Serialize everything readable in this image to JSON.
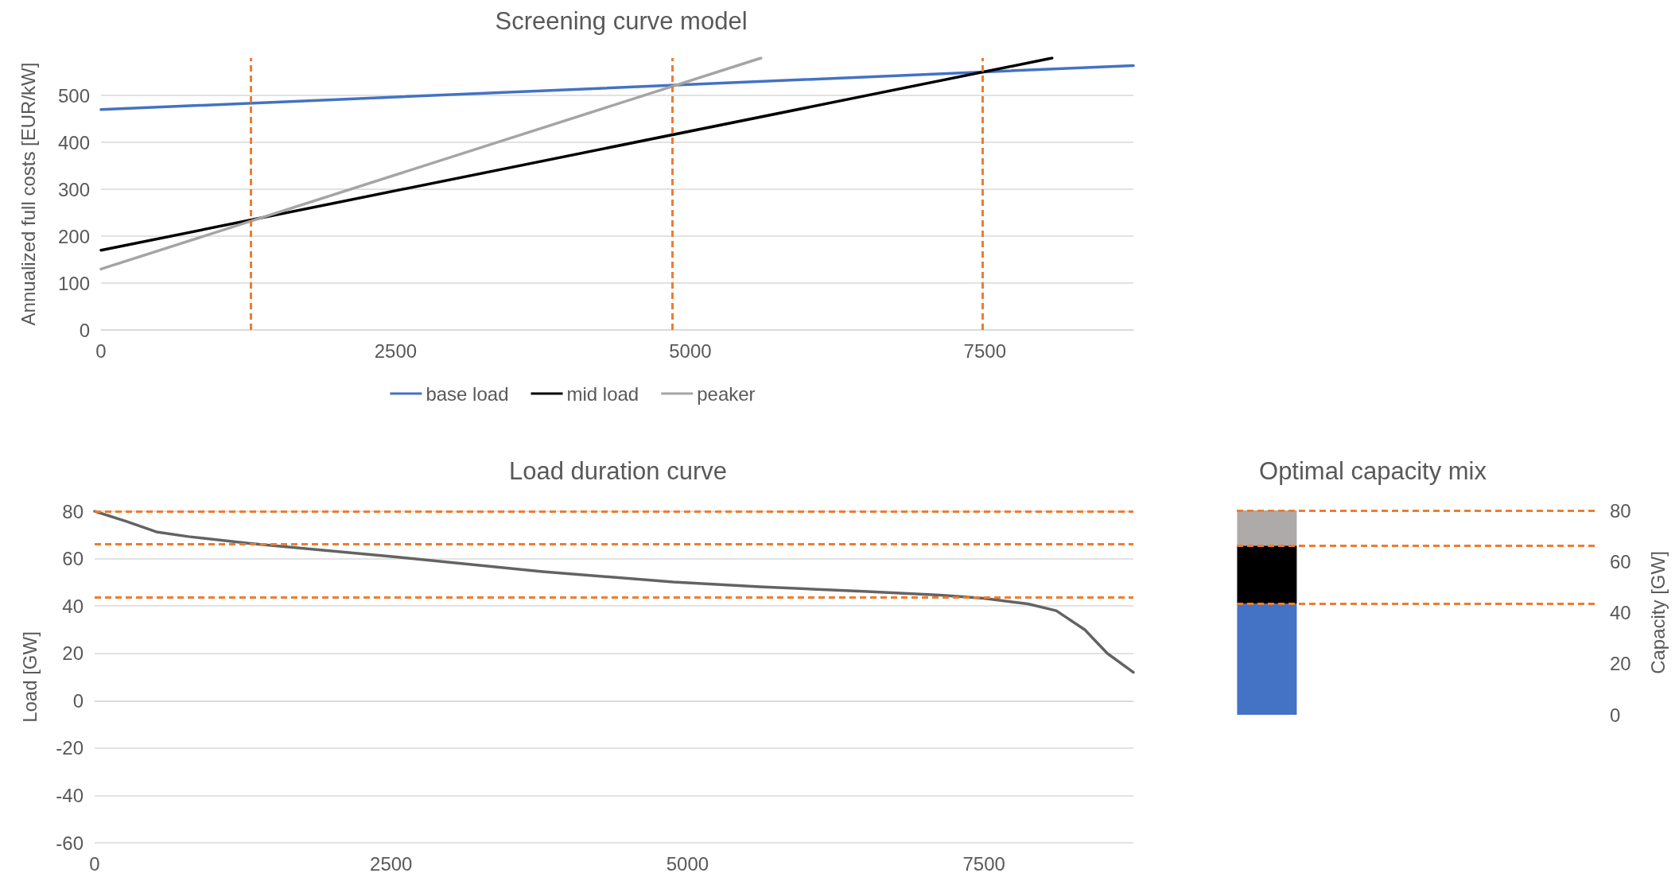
{
  "chart_data": [
    {
      "type": "line",
      "title": "Screening curve model",
      "ylabel": "Annualized full costs [EUR/kW]",
      "xlim": [
        0,
        8760
      ],
      "xticks": [
        0,
        2500,
        5000,
        7500
      ],
      "ylim": [
        0,
        580
      ],
      "yticks": [
        0,
        100,
        200,
        300,
        400,
        500
      ],
      "grid": "y",
      "legend": "bottom",
      "marker": "none",
      "series": [
        {
          "name": "base load",
          "color": "#4472c4",
          "x": [
            0,
            8760
          ],
          "values": [
            470,
            564
          ]
        },
        {
          "name": "mid load",
          "color": "#000000",
          "x": [
            0,
            8070
          ],
          "values": [
            170,
            580
          ]
        },
        {
          "name": "peaker",
          "color": "#a5a5a5",
          "x": [
            0,
            5600
          ],
          "values": [
            130,
            580
          ]
        }
      ],
      "ref_lines": [
        {
          "axis": "x",
          "value": 1270,
          "color": "#ed7d31",
          "line_style": "dashed"
        },
        {
          "axis": "x",
          "value": 4850,
          "color": "#ed7d31",
          "line_style": "dashed"
        },
        {
          "axis": "x",
          "value": 7480,
          "color": "#ed7d31",
          "line_style": "dashed"
        }
      ]
    },
    {
      "type": "line",
      "title": "Load duration curve",
      "ylabel": "Load [GW]",
      "xlim": [
        0,
        8760
      ],
      "xticks": [
        0,
        2500,
        5000,
        7500
      ],
      "ylim": [
        -60,
        80
      ],
      "yticks": [
        -60,
        -40,
        -20,
        0,
        20,
        40,
        60,
        80
      ],
      "grid": "y",
      "marker": "none",
      "series": [
        {
          "color": "#636363",
          "x": [
            0,
            270,
            520,
            790,
            1310,
            2560,
            3780,
            4880,
            5610,
            6520,
            7130,
            7500,
            7870,
            8110,
            8350,
            8540,
            8760
          ],
          "values": [
            80,
            75.7,
            71.3,
            69.3,
            66.4,
            60.6,
            54.5,
            50.1,
            48.1,
            46.1,
            44.6,
            43.2,
            40.9,
            38,
            30,
            20,
            12
          ]
        }
      ],
      "ref_lines": [
        {
          "axis": "y",
          "value": 80,
          "color": "#ed7d31",
          "line_style": "dashed"
        },
        {
          "axis": "y",
          "value": 66.2,
          "color": "#ed7d31",
          "line_style": "dashed"
        },
        {
          "axis": "y",
          "value": 43.5,
          "color": "#ed7d31",
          "line_style": "dashed"
        }
      ]
    },
    {
      "type": "bar",
      "title": "Optimal capacity mix",
      "ylabel": "Capacity [GW]",
      "categories": [
        null
      ],
      "stacked": true,
      "ylim": [
        0,
        80
      ],
      "yticks": [
        0,
        20,
        40,
        60,
        80
      ],
      "tick_labels": "y",
      "series": [
        {
          "color": "#4472c4",
          "values": [
            43.5
          ]
        },
        {
          "color": "#000000",
          "values": [
            22.7
          ]
        },
        {
          "color": "#aeaaaa",
          "values": [
            13.8
          ]
        }
      ],
      "ref_lines": [
        {
          "axis": "y",
          "value": 80,
          "color": "#ed7d31",
          "line_style": "dashed"
        },
        {
          "axis": "y",
          "value": 66.2,
          "color": "#ed7d31",
          "line_style": "dashed"
        },
        {
          "axis": "y",
          "value": 43.5,
          "color": "#ed7d31",
          "line_style": "dashed"
        }
      ]
    }
  ]
}
